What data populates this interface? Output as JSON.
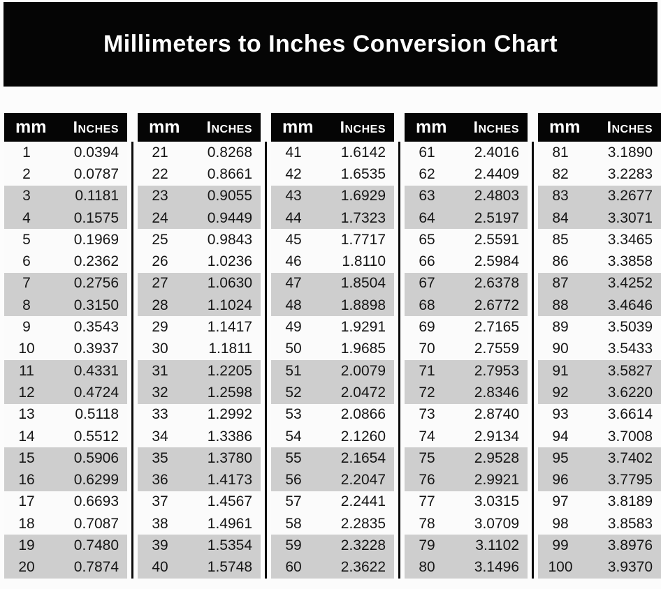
{
  "page_title": "Millimeters to Inches Conversion Chart",
  "colors": {
    "banner_bg": "#050505",
    "banner_text": "#ffffff",
    "header_bg": "#050505",
    "header_text": "#ffffff",
    "row_bg": "#fbfbfb",
    "row_shaded_bg": "#cecece",
    "cell_text": "#161616",
    "separator_line": "#0c0c0c"
  },
  "chart_data": {
    "type": "table",
    "title": "Millimeters to Inches Conversion Chart",
    "column_headers": [
      "mm",
      "Inches"
    ],
    "layout": {
      "table_count": 5,
      "rows_per_table": 20,
      "row_shading": "rows in alternating pairs: rows 1-2 plain, rows 3-4 shaded gray, repeating",
      "separators": "vertical black line between adjacent tables, below header only"
    },
    "tables": [
      {
        "rows": [
          [
            1,
            "0.0394"
          ],
          [
            2,
            "0.0787"
          ],
          [
            3,
            "0.1181"
          ],
          [
            4,
            "0.1575"
          ],
          [
            5,
            "0.1969"
          ],
          [
            6,
            "0.2362"
          ],
          [
            7,
            "0.2756"
          ],
          [
            8,
            "0.3150"
          ],
          [
            9,
            "0.3543"
          ],
          [
            10,
            "0.3937"
          ],
          [
            11,
            "0.4331"
          ],
          [
            12,
            "0.4724"
          ],
          [
            13,
            "0.5118"
          ],
          [
            14,
            "0.5512"
          ],
          [
            15,
            "0.5906"
          ],
          [
            16,
            "0.6299"
          ],
          [
            17,
            "0.6693"
          ],
          [
            18,
            "0.7087"
          ],
          [
            19,
            "0.7480"
          ],
          [
            20,
            "0.7874"
          ]
        ]
      },
      {
        "rows": [
          [
            21,
            "0.8268"
          ],
          [
            22,
            "0.8661"
          ],
          [
            23,
            "0.9055"
          ],
          [
            24,
            "0.9449"
          ],
          [
            25,
            "0.9843"
          ],
          [
            26,
            "1.0236"
          ],
          [
            27,
            "1.0630"
          ],
          [
            28,
            "1.1024"
          ],
          [
            29,
            "1.1417"
          ],
          [
            30,
            "1.1811"
          ],
          [
            31,
            "1.2205"
          ],
          [
            32,
            "1.2598"
          ],
          [
            33,
            "1.2992"
          ],
          [
            34,
            "1.3386"
          ],
          [
            35,
            "1.3780"
          ],
          [
            36,
            "1.4173"
          ],
          [
            37,
            "1.4567"
          ],
          [
            38,
            "1.4961"
          ],
          [
            39,
            "1.5354"
          ],
          [
            40,
            "1.5748"
          ]
        ]
      },
      {
        "rows": [
          [
            41,
            "1.6142"
          ],
          [
            42,
            "1.6535"
          ],
          [
            43,
            "1.6929"
          ],
          [
            44,
            "1.7323"
          ],
          [
            45,
            "1.7717"
          ],
          [
            46,
            "1.8110"
          ],
          [
            47,
            "1.8504"
          ],
          [
            48,
            "1.8898"
          ],
          [
            49,
            "1.9291"
          ],
          [
            50,
            "1.9685"
          ],
          [
            51,
            "2.0079"
          ],
          [
            52,
            "2.0472"
          ],
          [
            53,
            "2.0866"
          ],
          [
            54,
            "2.1260"
          ],
          [
            55,
            "2.1654"
          ],
          [
            56,
            "2.2047"
          ],
          [
            57,
            "2.2441"
          ],
          [
            58,
            "2.2835"
          ],
          [
            59,
            "2.3228"
          ],
          [
            60,
            "2.3622"
          ]
        ]
      },
      {
        "rows": [
          [
            61,
            "2.4016"
          ],
          [
            62,
            "2.4409"
          ],
          [
            63,
            "2.4803"
          ],
          [
            64,
            "2.5197"
          ],
          [
            65,
            "2.5591"
          ],
          [
            66,
            "2.5984"
          ],
          [
            67,
            "2.6378"
          ],
          [
            68,
            "2.6772"
          ],
          [
            69,
            "2.7165"
          ],
          [
            70,
            "2.7559"
          ],
          [
            71,
            "2.7953"
          ],
          [
            72,
            "2.8346"
          ],
          [
            73,
            "2.8740"
          ],
          [
            74,
            "2.9134"
          ],
          [
            75,
            "2.9528"
          ],
          [
            76,
            "2.9921"
          ],
          [
            77,
            "3.0315"
          ],
          [
            78,
            "3.0709"
          ],
          [
            79,
            "3.1102"
          ],
          [
            80,
            "3.1496"
          ]
        ]
      },
      {
        "rows": [
          [
            81,
            "3.1890"
          ],
          [
            82,
            "3.2283"
          ],
          [
            83,
            "3.2677"
          ],
          [
            84,
            "3.3071"
          ],
          [
            85,
            "3.3465"
          ],
          [
            86,
            "3.3858"
          ],
          [
            87,
            "3.4252"
          ],
          [
            88,
            "3.4646"
          ],
          [
            89,
            "3.5039"
          ],
          [
            90,
            "3.5433"
          ],
          [
            91,
            "3.5827"
          ],
          [
            92,
            "3.6220"
          ],
          [
            93,
            "3.6614"
          ],
          [
            94,
            "3.7008"
          ],
          [
            95,
            "3.7402"
          ],
          [
            96,
            "3.7795"
          ],
          [
            97,
            "3.8189"
          ],
          [
            98,
            "3.8583"
          ],
          [
            99,
            "3.8976"
          ],
          [
            100,
            "3.9370"
          ]
        ]
      }
    ]
  }
}
